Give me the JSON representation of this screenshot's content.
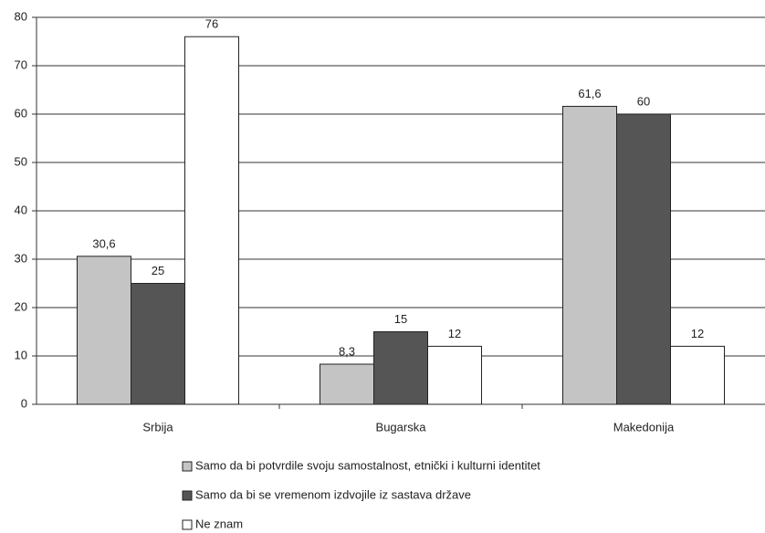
{
  "chart_data": {
    "type": "bar",
    "categories": [
      "Srbija",
      "Bugarska",
      "Makedonija"
    ],
    "series": [
      {
        "name": "Samo da bi potvrdile svoju samostalnost, etnički i kulturni identitet",
        "color": "#c4c4c4",
        "values": [
          30.6,
          8.3,
          61.6
        ],
        "value_labels": [
          "30,6",
          "8,3",
          "61,6"
        ]
      },
      {
        "name": "Samo da bi se vremenom izdvojile iz sastava države",
        "color": "#555555",
        "values": [
          25,
          15,
          60
        ]
      },
      {
        "name": "Ne znam",
        "color": "#ffffff",
        "values": [
          76,
          12,
          12
        ]
      }
    ],
    "ylim": [
      0,
      80
    ],
    "yticks": [
      0,
      10,
      20,
      30,
      40,
      50,
      60,
      70,
      80
    ],
    "grid": true
  }
}
